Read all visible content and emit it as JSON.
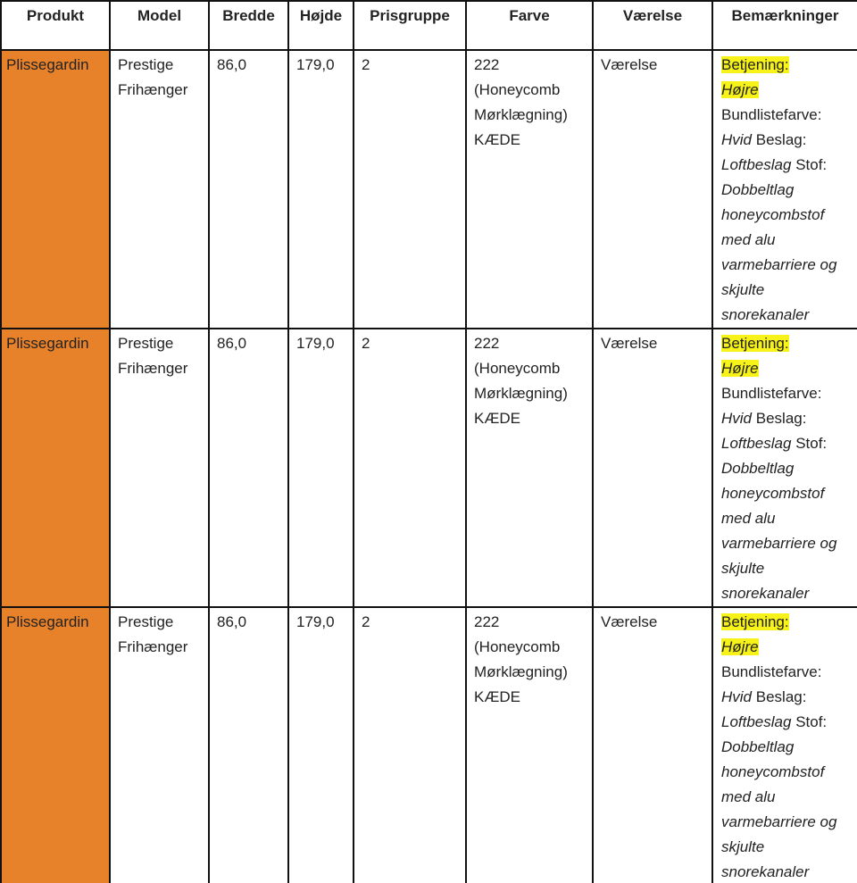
{
  "table": {
    "headers": [
      "Produkt",
      "Model",
      "Bredde",
      "Højde",
      "Prisgruppe",
      "Farve",
      "Værelse",
      "Bemærkninger"
    ],
    "rows": [
      {
        "cells": [
          "Plissegardin",
          "Prestige Frihænger",
          "86,0",
          "179,0",
          "2",
          "222 (Honeycomb Mørklægning) KÆDE",
          "Værelse"
        ],
        "remarks": [
          {
            "label": "Betjening:",
            "value": "Højre"
          },
          {
            "label": "Bundlistefarve:",
            "value": "Hvid"
          },
          {
            "label": "Beslag:",
            "value": "Loftbeslag"
          },
          {
            "label": "Stof:",
            "value": "Dobbeltlag honeycombstof med alu varmebarriere og skjulte snorekanaler"
          }
        ]
      },
      {
        "cells": [
          "Plissegardin",
          "Prestige Frihænger",
          "86,0",
          "179,0",
          "2",
          "222 (Honeycomb Mørklægning) KÆDE",
          "Værelse"
        ],
        "remarks": [
          {
            "label": "Betjening:",
            "value": "Højre"
          },
          {
            "label": "Bundlistefarve:",
            "value": "Hvid"
          },
          {
            "label": "Beslag:",
            "value": "Loftbeslag"
          },
          {
            "label": "Stof:",
            "value": "Dobbeltlag honeycombstof med alu varmebarriere og skjulte snorekanaler"
          }
        ]
      },
      {
        "cells": [
          "Plissegardin",
          "Prestige Frihænger",
          "86,0",
          "179,0",
          "2",
          "222 (Honeycomb Mørklægning) KÆDE",
          "Værelse"
        ],
        "remarks": [
          {
            "label": "Betjening:",
            "value": "Højre"
          },
          {
            "label": "Bundlistefarve:",
            "value": "Hvid"
          },
          {
            "label": "Beslag:",
            "value": "Loftbeslag"
          },
          {
            "label": "Stof:",
            "value": "Dobbeltlag honeycombstof med alu varmebarriere og skjulte snorekanaler"
          }
        ]
      }
    ]
  }
}
